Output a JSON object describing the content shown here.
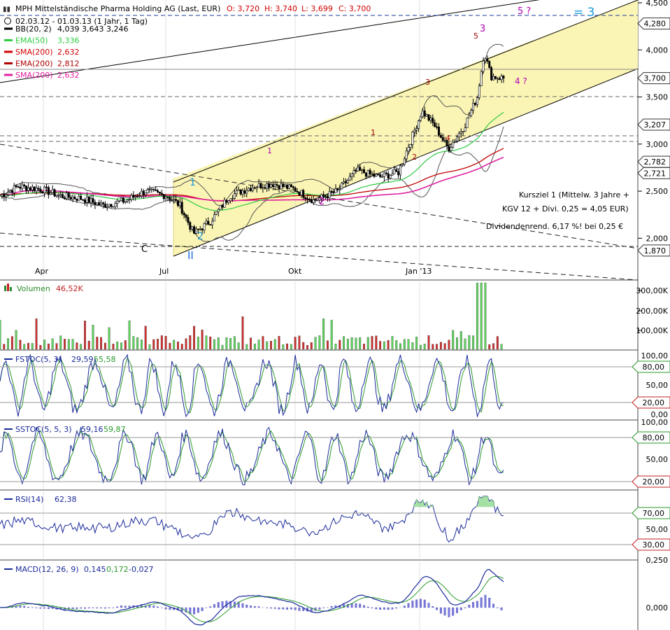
{
  "header": {
    "title": "MPH Mittelständische Pharma Holding AG (Last, EUR)",
    "ohlc": {
      "o": "O: 3,720",
      "h": "H: 3,740",
      "l": "L: 3,699",
      "c": "C: 3,700"
    },
    "range": "02.03.12 - 01.03.13 (1 Jahr, 1 Tag)"
  },
  "legend": [
    {
      "id": "bb",
      "name": "BB(20, 2)",
      "values": "4,039  3,643  3,246",
      "color": "#000000"
    },
    {
      "id": "ema50",
      "name": "EMA(50)",
      "values": "3,336",
      "color": "#2ecc40"
    },
    {
      "id": "sma200a",
      "name": "SMA(200)",
      "values": "2,632",
      "color": "#d40000"
    },
    {
      "id": "ema200",
      "name": "EMA(200)",
      "values": "2,812",
      "color": "#b00000"
    },
    {
      "id": "sma200b",
      "name": "SMA(200)",
      "values": "2,632",
      "color": "#e020a0"
    }
  ],
  "price_axis": {
    "ticks": [
      "4,500",
      "4,000",
      "3,500",
      "3,000",
      "2,500",
      "2,000"
    ],
    "tags": [
      "4,280",
      "3,700",
      "3,207",
      "2,782",
      "2,721",
      "1,870"
    ]
  },
  "x_axis": {
    "labels": [
      "Apr",
      "Jul",
      "Okt",
      "Jan '13"
    ]
  },
  "annotations": {
    "wave5q": "5 ?",
    "wave3eq": "= 3",
    "wave4q": "4 ?",
    "kursziel1": "Kursziel 1 (Mittelw. 3 Jahre +",
    "kursziel2": "KGV 12 + Divi. 0,25 = 4,05 EUR)",
    "dividend": "Dividendenrend. 6,17 %! bei 0,25 €",
    "c": "C",
    "ii": "II",
    "w1a": "1",
    "w2a": "2",
    "w1b": "1",
    "w2b": "2",
    "w1c": "1",
    "w2c": "2",
    "w3a": "3",
    "w4a": "4",
    "w5a": "5",
    "w3b": "3"
  },
  "volume": {
    "label": "Volumen",
    "value": "46,52K",
    "ticks": [
      "300,00K",
      "200,00K",
      "100,00K"
    ]
  },
  "fstoc": {
    "label": "FSTOC(5, 3)",
    "v1": "29,59",
    "v2": "55,58",
    "ticks": [
      "100,00",
      "50,00",
      "0,00"
    ],
    "tags": [
      "80,00",
      "20,00"
    ]
  },
  "sstoc": {
    "label": "SSTOC(5, 5, 3)",
    "v1": "59,16",
    "v2": "59,87",
    "ticks": [
      "100,00",
      "50,00"
    ],
    "tags": [
      "80,00",
      "20,00"
    ]
  },
  "rsi": {
    "label": "RSI(14)",
    "v1": "62,38",
    "ticks": [
      "50,00"
    ],
    "tags": [
      "70,00",
      "30,00"
    ]
  },
  "macd": {
    "label": "MACD(12, 26, 9)",
    "v1": "0,145",
    "v2": "0,172",
    "v3": "-0,027",
    "ticks": [
      "0,250",
      "0,000"
    ]
  },
  "chart_data": {
    "type": "line",
    "title": "MPH Mittelständische Pharma Holding AG (Last, EUR)",
    "x_range": [
      "2012-03-02",
      "2013-03-01"
    ],
    "ylim": [
      1.75,
      4.5
    ],
    "close_approx": {
      "x": [
        "2012-03-02",
        "2012-03-15",
        "2012-04-01",
        "2012-04-15",
        "2012-05-01",
        "2012-05-15",
        "2012-06-01",
        "2012-06-15",
        "2012-07-01",
        "2012-07-10",
        "2012-07-20",
        "2012-08-01",
        "2012-08-15",
        "2012-09-01",
        "2012-09-15",
        "2012-10-01",
        "2012-10-15",
        "2012-11-01",
        "2012-11-15",
        "2012-12-01",
        "2012-12-15",
        "2013-01-01",
        "2013-01-10",
        "2013-01-20",
        "2013-02-01",
        "2013-02-10",
        "2013-02-15",
        "2013-02-20",
        "2013-03-01"
      ],
      "y": [
        2.45,
        2.55,
        2.52,
        2.45,
        2.42,
        2.35,
        2.4,
        2.5,
        2.45,
        2.35,
        2.05,
        2.18,
        2.45,
        2.55,
        2.58,
        2.52,
        2.4,
        2.5,
        2.72,
        2.65,
        2.7,
        3.35,
        3.2,
        2.95,
        3.2,
        3.5,
        3.98,
        3.72,
        3.7
      ]
    },
    "series": [
      {
        "name": "BB(20, 2)",
        "last": [
          4.039,
          3.643,
          3.246
        ]
      },
      {
        "name": "EMA(50)",
        "last": 3.336
      },
      {
        "name": "SMA(200)",
        "last": 2.632
      },
      {
        "name": "EMA(200)",
        "last": 2.812
      }
    ],
    "levels": [
      4.28,
      3.7,
      3.207,
      2.782,
      2.721,
      1.87
    ],
    "volume": {
      "max": 330000,
      "last": 46520
    },
    "indicators": {
      "FSTOC(5, 3)": [
        29.59,
        55.58
      ],
      "SSTOC(5, 5, 3)": [
        59.16,
        59.87
      ],
      "RSI(14)": [
        62.38
      ],
      "MACD(12, 26, 9)": [
        0.145,
        0.172,
        -0.027
      ]
    }
  }
}
